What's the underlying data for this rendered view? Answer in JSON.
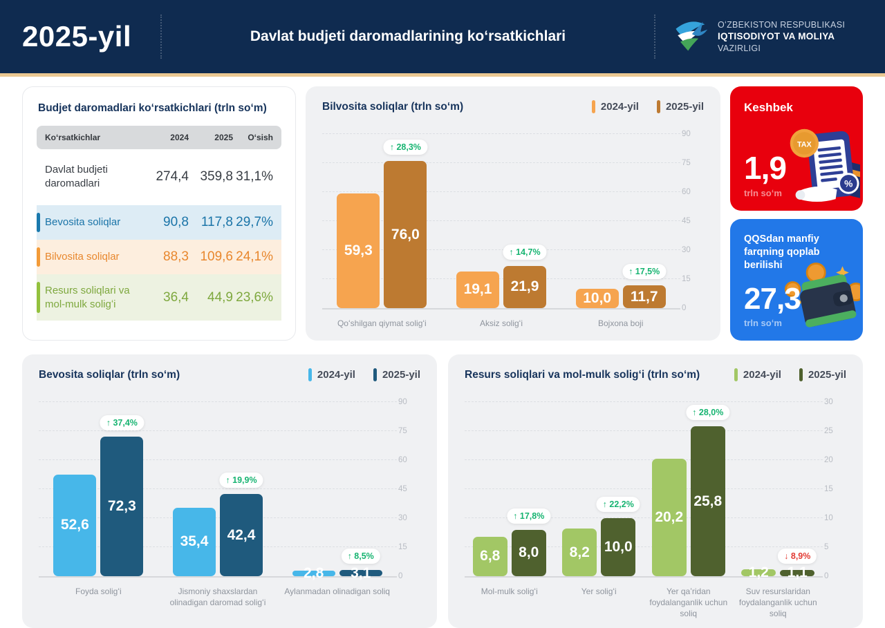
{
  "header": {
    "year": "2025-yil",
    "title": "Davlat budjeti daromadlarining koʻrsatkichlari",
    "ministry_line1": "OʻZBEKISTON RESPUBLIKASI",
    "ministry_line2": "IQTISODIYOT VA MOLIYA",
    "ministry_line3": "VAZIRLIGI"
  },
  "colors": {
    "header_navy": "#0f2b50",
    "gold_line": "#eac892",
    "panel_gray": "#f0f1f3",
    "badge_up": "#17b471",
    "badge_down": "#e23b34",
    "card_red": "#e8000d",
    "card_blue": "#2278e8"
  },
  "table": {
    "title": "Budjet daromadlari koʻrsatkichlari (trln soʻm)",
    "columns": [
      "Koʻrsatkichlar",
      "2024",
      "2025",
      "Oʻsish"
    ],
    "rows": [
      {
        "label": "Davlat budjeti daromadlari",
        "v2024": "274,4",
        "v2025": "359,8",
        "growth": "31,1%",
        "variant": "plain"
      },
      {
        "label": "Bevosita soliqlar",
        "v2024": "90,8",
        "v2025": "117,8",
        "growth": "29,7%",
        "variant": "blue"
      },
      {
        "label": "Bilvosita soliqlar",
        "v2024": "88,3",
        "v2025": "109,6",
        "growth": "24,1%",
        "variant": "orange"
      },
      {
        "label": "Resurs soliqlari va mol-mulk soligʻi",
        "v2024": "36,4",
        "v2025": "44,9",
        "growth": "23,6%",
        "variant": "green"
      }
    ]
  },
  "cards": {
    "keshbek": {
      "title": "Keshbek",
      "value": "1,9",
      "unit": "trln soʻm",
      "tax_coin_label": "TAX",
      "percent_badge": "%"
    },
    "qqs": {
      "title": "QQSdan manfiy farqning qoplab berilishi",
      "value": "27,3",
      "unit": "trln soʻm"
    }
  },
  "chart_data": [
    {
      "id": "bilvosita",
      "type": "bar",
      "title": "Bilvosita soliqlar (trln soʻm)",
      "categories": [
        "Qoʻshilgan qiymat soligʻi",
        "Aksiz soligʻi",
        "Bojxona boji"
      ],
      "series": [
        {
          "name": "2024-yil",
          "color": "#f6a44f",
          "values": [
            59.3,
            19.1,
            10.0
          ],
          "value_labels": [
            "59,3",
            "19,1",
            "10,0"
          ]
        },
        {
          "name": "2025-yil",
          "color": "#bd7a31",
          "values": [
            76.0,
            21.9,
            11.7
          ],
          "value_labels": [
            "76,0",
            "21,9",
            "11,7"
          ]
        }
      ],
      "growth_badges": [
        {
          "direction": "up",
          "label": "28,3%"
        },
        {
          "direction": "up",
          "label": "14,7%"
        },
        {
          "direction": "up",
          "label": "17,5%"
        }
      ],
      "ylim": [
        0,
        90
      ],
      "yticks": [
        0,
        15,
        30,
        45,
        60,
        75,
        90
      ],
      "grid": "dashed",
      "legend_position": "top-right"
    },
    {
      "id": "bevosita",
      "type": "bar",
      "title": "Bevosita soliqlar (trln soʻm)",
      "categories": [
        "Foyda soligʻi",
        "Jismoniy shaxslardan olinadigan daromad soligʻi",
        "Aylanmadan olinadigan soliq"
      ],
      "series": [
        {
          "name": "2024-yil",
          "color": "#47b7e9",
          "values": [
            52.6,
            35.4,
            2.8
          ],
          "value_labels": [
            "52,6",
            "35,4",
            "2,8"
          ]
        },
        {
          "name": "2025-yil",
          "color": "#1f5a7d",
          "values": [
            72.3,
            42.4,
            3.1
          ],
          "value_labels": [
            "72,3",
            "42,4",
            "3,1"
          ]
        }
      ],
      "growth_badges": [
        {
          "direction": "up",
          "label": "37,4%"
        },
        {
          "direction": "up",
          "label": "19,9%"
        },
        {
          "direction": "up",
          "label": "8,5%"
        }
      ],
      "ylim": [
        0,
        90
      ],
      "yticks": [
        0,
        15,
        30,
        45,
        60,
        75,
        90
      ],
      "grid": "dashed",
      "legend_position": "top-right"
    },
    {
      "id": "resurs",
      "type": "bar",
      "title": "Resurs soliqlari va mol-mulk soligʻi (trln soʻm)",
      "categories": [
        "Mol-mulk soligʻi",
        "Yer soligʻi",
        "Yer qaʼridan foydalanganlik uchun soliq",
        "Suv resurslaridan foydalanganlik uchun soliq"
      ],
      "series": [
        {
          "name": "2024-yil",
          "color": "#a2c765",
          "values": [
            6.8,
            8.2,
            20.2,
            1.2
          ],
          "value_labels": [
            "6,8",
            "8,2",
            "20,2",
            "1,2"
          ]
        },
        {
          "name": "2025-yil",
          "color": "#4f612e",
          "values": [
            8.0,
            10.0,
            25.8,
            1.1
          ],
          "value_labels": [
            "8,0",
            "10,0",
            "25,8",
            "1,1"
          ]
        }
      ],
      "growth_badges": [
        {
          "direction": "up",
          "label": "17,8%"
        },
        {
          "direction": "up",
          "label": "22,2%"
        },
        {
          "direction": "up",
          "label": "28,0%"
        },
        {
          "direction": "down",
          "label": "8,9%"
        }
      ],
      "ylim": [
        0,
        30
      ],
      "yticks": [
        0,
        5,
        10,
        15,
        20,
        25,
        30
      ],
      "grid": "dashed",
      "legend_position": "top-right"
    }
  ]
}
